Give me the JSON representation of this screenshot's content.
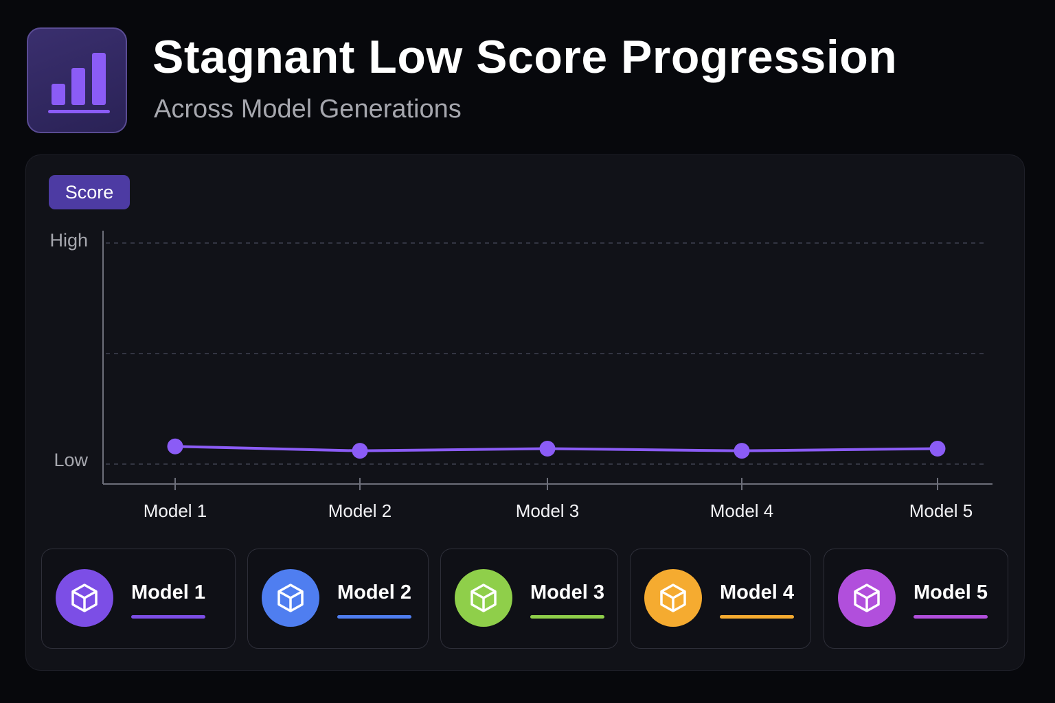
{
  "header": {
    "title": "Stagnant Low Score Progression",
    "subtitle": "Across Model Generations",
    "icon": "bar-chart-icon"
  },
  "chart_data": {
    "type": "line",
    "title": "Stagnant Low Score Progression",
    "subtitle": "Across Model Generations",
    "ylabel": "Score",
    "y_tick_labels": [
      {
        "label": "High",
        "value": 1.0
      },
      {
        "label": "Low",
        "value": 0.0
      }
    ],
    "ylim": [
      0,
      1
    ],
    "categories": [
      "Model 1",
      "Model 2",
      "Model 3",
      "Model 4",
      "Model 5"
    ],
    "series": [
      {
        "values": [
          0.08,
          0.06,
          0.07,
          0.06,
          0.07
        ],
        "color": "#8b5cf6"
      }
    ],
    "grid": true
  },
  "legend": {
    "items": [
      {
        "label": "Model 1",
        "color": "#7c4ee6",
        "icon": "cube-icon"
      },
      {
        "label": "Model 2",
        "color": "#4f7ef0",
        "icon": "cube-icon"
      },
      {
        "label": "Model 3",
        "color": "#8fcf4a",
        "icon": "cube-icon"
      },
      {
        "label": "Model 4",
        "color": "#f5ab30",
        "icon": "cube-icon"
      },
      {
        "label": "Model 5",
        "color": "#b14fdc",
        "icon": "cube-icon"
      }
    ]
  }
}
